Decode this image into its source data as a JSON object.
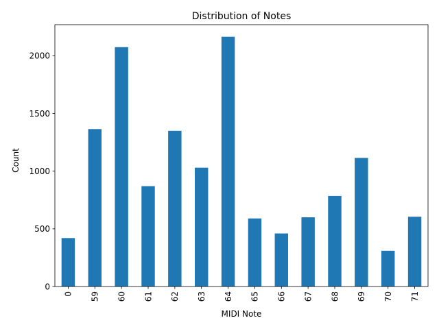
{
  "chart_data": {
    "type": "bar",
    "title": "Distribution of Notes",
    "xlabel": "MIDI Note",
    "ylabel": "Count",
    "categories": [
      "0",
      "59",
      "60",
      "61",
      "62",
      "63",
      "64",
      "65",
      "66",
      "67",
      "68",
      "69",
      "70",
      "71"
    ],
    "values": [
      420,
      1365,
      2075,
      870,
      1350,
      1030,
      2165,
      590,
      460,
      600,
      785,
      1115,
      310,
      605
    ],
    "ylim": [
      0,
      2270
    ],
    "yticks": [
      0,
      500,
      1000,
      1500,
      2000
    ],
    "grid": false,
    "legend": "none",
    "bar_color": "#1f77b4",
    "xtick_rotation": "vertical"
  }
}
